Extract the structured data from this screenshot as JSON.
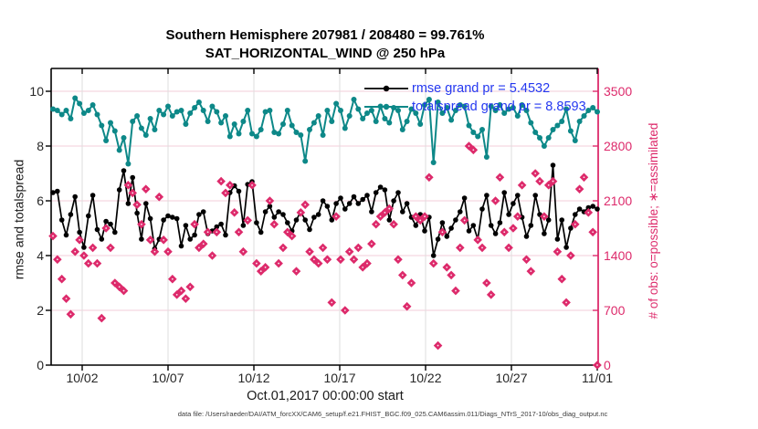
{
  "figure": {
    "title_line1": "Southern Hemisphere 207981 / 208480 = 99.761%",
    "title_line2": "SAT_HORIZONTAL_WIND @ 250 hPa",
    "xlabel": "Oct.01,2017 00:00:00 start",
    "ylabel_left": "rmse and totalspread",
    "ylabel_right": "# of obs: o=possible; ∗=assimilated",
    "footer": "data file: /Users/raeder/DAI/ATM_forcXX/CAM6_setup/f.e21.FHIST_BGC.f09_025.CAM6assim.011/Diags_NTrS_2017-10/obs_diag_output.nc"
  },
  "legend": {
    "entries": [
      {
        "label": "rmse grand pr = 5.4532",
        "series": "rmse"
      },
      {
        "label": "totalspread grand pr = 8.8593",
        "series": "totalspread"
      }
    ],
    "text_color": "#2438f0"
  },
  "colors": {
    "rmse": "#000000",
    "totalspread": "#0d8888",
    "obs": "#dd2a6b",
    "grid_horizontal": "#f3ccd8",
    "grid_vertical": "#dedede",
    "axis": "#000000",
    "right_axis": "#dd2a6b",
    "tick_text": "#262626"
  },
  "chart_data": {
    "type": "line",
    "title": "Southern Hemisphere 207981 / 208480 = 99.761% | SAT_HORIZONTAL_WIND @ 250 hPa",
    "x_axis": {
      "label": "Oct.01,2017 00:00:00 start",
      "tick_labels": [
        "10/02",
        "10/07",
        "10/12",
        "10/17",
        "10/22",
        "10/27",
        "11/01"
      ],
      "points_per_day": 4,
      "start_date": "2017-10-01",
      "end_date": "2017-11-01"
    },
    "y_left": {
      "label": "rmse and totalspread",
      "ticks": [
        0,
        2,
        4,
        6,
        8,
        10
      ],
      "range": [
        0,
        10.83
      ]
    },
    "y_right": {
      "label": "# of obs: o=possible; ∗=assimilated",
      "ticks": [
        0,
        700,
        1400,
        2100,
        2800,
        3500
      ],
      "range": [
        0,
        3792
      ]
    },
    "obs_possible_total": 208480,
    "obs_assimilated_total": 207981,
    "assimilated_percent": 99.761,
    "grid": true,
    "legend_position": "top-right-inside",
    "series": [
      {
        "name": "totalspread",
        "axis": "left",
        "marker": "circle",
        "line": true,
        "grand_mean": 8.8593,
        "values": [
          9.35,
          9.3,
          9.15,
          9.3,
          9.0,
          9.75,
          9.55,
          9.2,
          9.3,
          9.5,
          9.15,
          8.75,
          8.2,
          8.85,
          8.55,
          7.85,
          8.3,
          7.35,
          8.9,
          9.1,
          8.65,
          8.4,
          9.0,
          8.6,
          9.3,
          9.15,
          9.45,
          9.1,
          9.25,
          9.3,
          8.8,
          9.2,
          9.4,
          9.6,
          9.3,
          8.9,
          9.45,
          9.25,
          8.85,
          9.1,
          8.35,
          8.8,
          8.45,
          8.9,
          9.3,
          8.45,
          8.35,
          8.6,
          9.25,
          9.3,
          8.5,
          8.45,
          8.8,
          9.3,
          8.75,
          8.5,
          8.4,
          7.45,
          8.6,
          8.85,
          9.1,
          8.4,
          9.3,
          8.9,
          9.55,
          9.3,
          8.65,
          9.1,
          9.7,
          9.35,
          9.0,
          9.2,
          9.3,
          8.9,
          9.45,
          9.0,
          8.85,
          9.4,
          9.3,
          8.6,
          8.9,
          9.35,
          9.2,
          8.8,
          9.5,
          9.7,
          7.4,
          9.6,
          9.2,
          9.4,
          8.95,
          9.3,
          9.5,
          9.45,
          8.75,
          8.5,
          8.35,
          8.6,
          7.6,
          9.45,
          9.3,
          9.5,
          9.2,
          9.35,
          9.4,
          9.1,
          9.5,
          9.3,
          8.85,
          8.5,
          8.3,
          8.0,
          8.3,
          8.6,
          8.75,
          8.9,
          9.35,
          8.55,
          8.2,
          8.9,
          9.1,
          9.3,
          9.4,
          9.25
        ]
      },
      {
        "name": "rmse",
        "axis": "left",
        "marker": "circle",
        "line": true,
        "grand_mean": 5.4532,
        "values": [
          6.3,
          6.35,
          5.3,
          4.75,
          5.5,
          6.15,
          4.85,
          4.3,
          5.45,
          6.2,
          4.95,
          4.6,
          5.25,
          5.15,
          4.85,
          6.4,
          7.1,
          5.9,
          6.85,
          5.55,
          4.6,
          5.9,
          5.35,
          4.25,
          4.6,
          5.3,
          5.45,
          5.4,
          5.35,
          4.35,
          5.1,
          4.6,
          4.75,
          5.5,
          5.6,
          4.8,
          4.9,
          5.05,
          5.15,
          4.75,
          6.3,
          6.55,
          6.35,
          5.1,
          6.6,
          6.7,
          5.2,
          4.85,
          5.6,
          5.8,
          5.4,
          5.6,
          5.5,
          5.2,
          4.9,
          5.3,
          5.6,
          5.3,
          4.95,
          5.4,
          5.5,
          6.0,
          5.8,
          5.3,
          5.9,
          6.1,
          5.7,
          5.9,
          6.15,
          5.9,
          6.05,
          6.2,
          5.6,
          6.3,
          6.5,
          6.4,
          5.3,
          6.0,
          6.3,
          5.6,
          5.9,
          5.4,
          5.1,
          5.5,
          4.9,
          5.4,
          4.0,
          4.6,
          5.2,
          4.7,
          5.0,
          5.3,
          5.6,
          6.1,
          4.9,
          5.1,
          4.6,
          5.7,
          6.2,
          5.1,
          4.8,
          5.2,
          6.3,
          5.5,
          5.9,
          6.2,
          5.4,
          4.7,
          5.1,
          6.2,
          5.5,
          4.8,
          5.3,
          7.3,
          4.6,
          5.3,
          4.3,
          5.0,
          5.5,
          5.7,
          5.6,
          5.75,
          5.8,
          5.7
        ]
      },
      {
        "name": "obs_assimilated",
        "axis": "right",
        "marker": "asterisk",
        "line": false,
        "values": [
          1650,
          1350,
          1100,
          850,
          650,
          1450,
          1600,
          1400,
          1300,
          1500,
          1300,
          600,
          1750,
          1500,
          1050,
          1000,
          950,
          2300,
          2200,
          2050,
          1800,
          2250,
          1600,
          1450,
          2150,
          1600,
          1450,
          1100,
          900,
          950,
          850,
          1000,
          1800,
          1500,
          1550,
          1700,
          1400,
          1700,
          2350,
          2200,
          2300,
          1950,
          1700,
          1450,
          1850,
          2300,
          1300,
          1200,
          1250,
          2100,
          1800,
          1300,
          1500,
          1700,
          1650,
          1200,
          1950,
          2050,
          1450,
          1350,
          1300,
          1500,
          1350,
          800,
          1900,
          1350,
          700,
          1450,
          1350,
          1500,
          1250,
          1300,
          1550,
          1800,
          1900,
          1950,
          2000,
          1800,
          1350,
          1150,
          750,
          1050,
          1900,
          1850,
          1900,
          2400,
          1300,
          250,
          1700,
          1250,
          1150,
          950,
          1500,
          1850,
          2800,
          2750,
          1600,
          1500,
          1050,
          900,
          2100,
          2400,
          1700,
          1500,
          1750,
          1900,
          2300,
          1350,
          1200,
          2450,
          2350,
          1900,
          2300,
          2350,
          1450,
          1100,
          800,
          1400,
          1800,
          2250,
          2400,
          1950,
          1700,
          0
        ]
      }
    ]
  }
}
